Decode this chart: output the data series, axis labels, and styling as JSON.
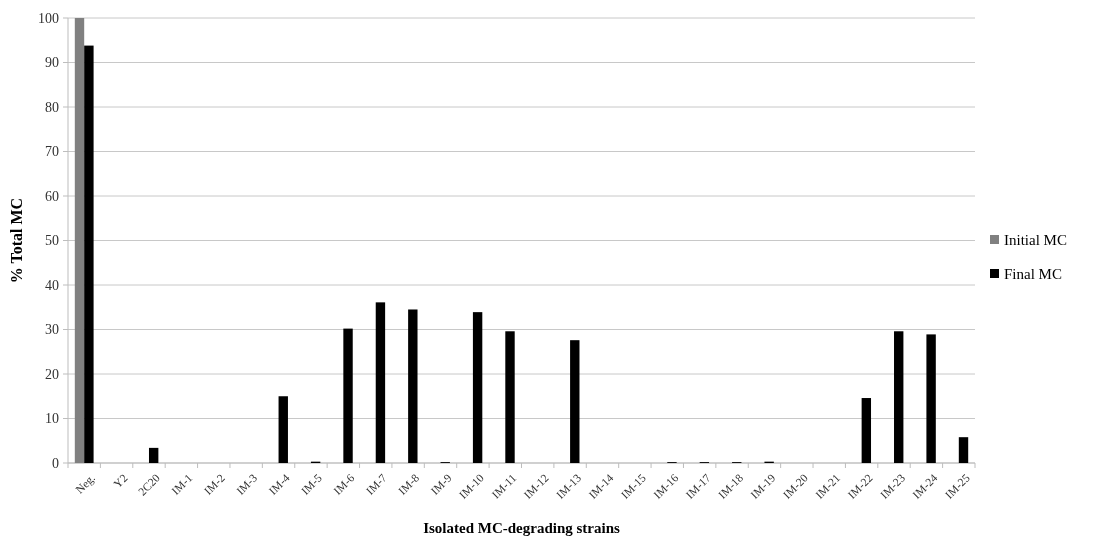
{
  "chart_data": {
    "type": "bar",
    "xlabel": "Isolated MC-degrading strains",
    "ylabel": "% Total MC",
    "categories": [
      "Neg.",
      "Y2",
      "2C20",
      "IM-1",
      "IM-2",
      "IM-3",
      "IM-4",
      "IM-5",
      "IM-6",
      "IM-7",
      "IM-8",
      "IM-9",
      "IM-10",
      "IM-11",
      "IM-12",
      "IM-13",
      "IM-14",
      "IM-15",
      "IM-16",
      "IM-17",
      "IM-18",
      "IM-19",
      "IM-20",
      "IM-21",
      "IM-22",
      "IM-23",
      "IM-24",
      "IM-25"
    ],
    "series": [
      {
        "name": "Initial MC",
        "color": "#808080",
        "values": [
          100,
          null,
          null,
          null,
          null,
          null,
          null,
          null,
          null,
          null,
          null,
          null,
          null,
          null,
          null,
          null,
          null,
          null,
          null,
          null,
          null,
          null,
          null,
          null,
          null,
          null,
          null,
          null
        ]
      },
      {
        "name": "Final MC",
        "color": "#000000",
        "values": [
          93.8,
          0,
          3.4,
          0,
          0,
          0,
          15,
          0.3,
          30.2,
          36.1,
          34.5,
          0.2,
          33.9,
          29.6,
          0,
          27.6,
          0,
          0,
          0.2,
          0.2,
          0.2,
          0.3,
          0,
          0,
          14.6,
          29.6,
          28.9,
          5.8
        ]
      }
    ],
    "ylim": [
      0,
      100
    ],
    "yticks": [
      0,
      10,
      20,
      30,
      40,
      50,
      60,
      70,
      80,
      90,
      100
    ],
    "grid": "y",
    "legend": "right"
  }
}
